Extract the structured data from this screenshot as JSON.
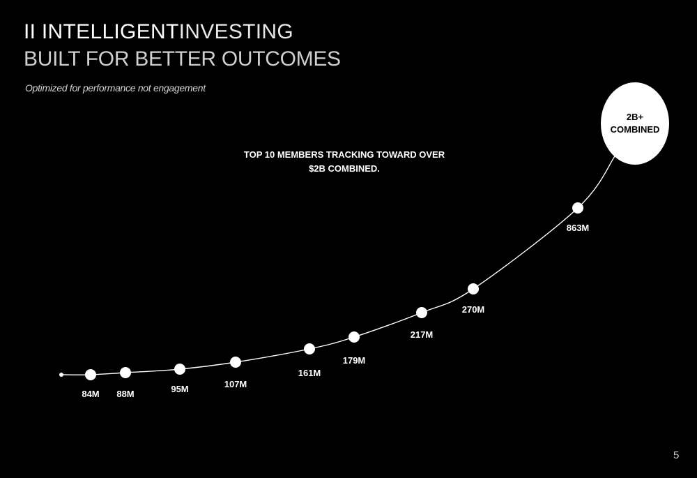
{
  "header": {
    "logo_mark": "II",
    "title_strong": "INTELLIGENT",
    "title_light": "INVESTING",
    "subtitle": "BUILT FOR BETTER OUTCOMES",
    "tagline": "Optimized for performance not engagement"
  },
  "chart_data": {
    "type": "line",
    "title": "TOP 10 MEMBERS TRACKING TOWARD OVER $2B COMBINED.",
    "xlabel": "",
    "ylabel": "",
    "series": [
      {
        "values": [
          84,
          88,
          95,
          107,
          161,
          179,
          217,
          270,
          863
        ],
        "labels": [
          "84M",
          "88M",
          "95M",
          "107M",
          "161M",
          "179M",
          "217M",
          "270M",
          "863M"
        ]
      }
    ],
    "target": {
      "label_line1": "2B+",
      "label_line2": "COMBINED"
    },
    "grid": false,
    "legend": "none"
  },
  "colors": {
    "background": "#000000",
    "foreground": "#ffffff"
  },
  "footer": {
    "page_number": "5"
  }
}
